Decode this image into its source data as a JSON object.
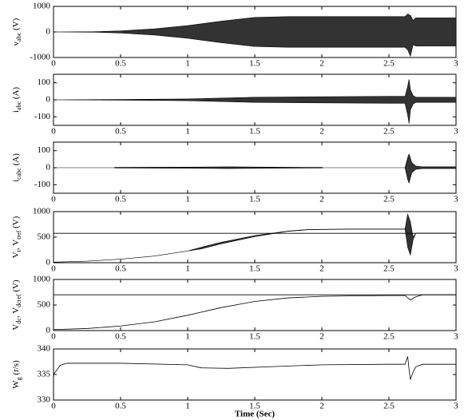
{
  "chart_data": [
    {
      "type": "line",
      "ylabel": [
        {
          "text": "v"
        },
        {
          "text": "abc",
          "sub": true
        },
        {
          "text": " (V)"
        }
      ],
      "xlim": [
        0,
        3
      ],
      "xticks": [
        0,
        0.5,
        1,
        1.5,
        2,
        2.5,
        3
      ],
      "ylim": [
        -1000,
        1000
      ],
      "yticks": [
        -1000,
        0,
        1000
      ],
      "fill_between": [
        0,
        1
      ],
      "series": [
        {
          "color": "#000000",
          "x": [
            0,
            0.3,
            0.5,
            0.75,
            1,
            1.25,
            1.5,
            1.75,
            2,
            2.25,
            2.5,
            2.62,
            2.64,
            2.66,
            2.68,
            2.7,
            2.75,
            3
          ],
          "values": [
            0,
            10,
            40,
            120,
            250,
            420,
            570,
            600,
            600,
            600,
            600,
            600,
            700,
            650,
            450,
            550,
            550,
            550
          ]
        },
        {
          "color": "#000000",
          "x": [
            0,
            0.3,
            0.5,
            0.75,
            1,
            1.25,
            1.5,
            1.75,
            2,
            2.25,
            2.5,
            2.62,
            2.64,
            2.66,
            2.68,
            2.7,
            2.75,
            3
          ],
          "values": [
            0,
            -10,
            -40,
            -120,
            -250,
            -420,
            -570,
            -600,
            -600,
            -600,
            -600,
            -600,
            -700,
            -950,
            -500,
            -550,
            -550,
            -550
          ]
        }
      ]
    },
    {
      "type": "line",
      "ylabel": [
        {
          "text": "i"
        },
        {
          "text": "abc",
          "sub": true
        },
        {
          "text": " (A)"
        }
      ],
      "xlim": [
        0,
        3
      ],
      "xticks": [
        0,
        0.5,
        1,
        1.5,
        2,
        2.5,
        3
      ],
      "ylim": [
        -150,
        150
      ],
      "yticks": [
        -100,
        0,
        100
      ],
      "fill_between": [
        0,
        1
      ],
      "series": [
        {
          "color": "#000000",
          "x": [
            0,
            0.5,
            1,
            1.5,
            2,
            2.5,
            2.62,
            2.64,
            2.65,
            2.66,
            2.68,
            2.7,
            3
          ],
          "values": [
            0,
            2,
            5,
            15,
            18,
            20,
            20,
            80,
            120,
            60,
            25,
            15,
            15
          ]
        },
        {
          "color": "#000000",
          "x": [
            0,
            0.5,
            1,
            1.5,
            2,
            2.5,
            2.62,
            2.64,
            2.65,
            2.66,
            2.68,
            2.7,
            3
          ],
          "values": [
            0,
            -2,
            -5,
            -15,
            -18,
            -20,
            -20,
            -90,
            -140,
            -60,
            -25,
            -15,
            -15
          ]
        }
      ]
    },
    {
      "type": "line",
      "ylabel": [
        {
          "text": "i"
        },
        {
          "text": "cabc",
          "sub": true
        },
        {
          "text": " (A)"
        }
      ],
      "xlim": [
        0,
        3
      ],
      "xticks": [
        0,
        0.5,
        1,
        1.5,
        2,
        2.5,
        3
      ],
      "ylim": [
        -150,
        150
      ],
      "yticks": [
        -100,
        0,
        100
      ],
      "fill_between": [
        0,
        1
      ],
      "series": [
        {
          "color": "#000000",
          "x": [
            0,
            0.45,
            0.46,
            1,
            1.3,
            1.6,
            2,
            2.01,
            2.62,
            2.64,
            2.65,
            2.67,
            2.7,
            2.75,
            3
          ],
          "values": [
            0,
            0,
            2,
            3,
            5,
            3,
            2,
            0,
            0,
            60,
            80,
            30,
            10,
            5,
            5
          ]
        },
        {
          "color": "#000000",
          "x": [
            0,
            0.45,
            0.46,
            1,
            1.3,
            1.6,
            2,
            2.01,
            2.62,
            2.64,
            2.65,
            2.67,
            2.7,
            2.75,
            3
          ],
          "values": [
            0,
            0,
            -2,
            -3,
            -5,
            -3,
            -2,
            0,
            0,
            -70,
            -90,
            -30,
            -10,
            -5,
            -5
          ]
        }
      ]
    },
    {
      "type": "line",
      "ylabel": [
        {
          "text": "V"
        },
        {
          "text": "t",
          "sub": true
        },
        {
          "text": ", V"
        },
        {
          "text": "tref",
          "sub": true
        },
        {
          "text": " (V)"
        }
      ],
      "xlim": [
        0,
        3
      ],
      "xticks": [
        0,
        0.5,
        1,
        1.5,
        2,
        2.5,
        3
      ],
      "ylim": [
        0,
        1000
      ],
      "yticks": [
        0,
        500,
        1000
      ],
      "fill_between": [
        0,
        1
      ],
      "series": [
        {
          "color": "#000000",
          "x": [
            0,
            0.25,
            0.5,
            0.75,
            1,
            1.1,
            1.25,
            1.5,
            1.75,
            1.9,
            2.2,
            2.5,
            2.62,
            2.64,
            2.66,
            2.68,
            2.7,
            3
          ],
          "values": [
            10,
            30,
            70,
            130,
            230,
            300,
            400,
            530,
            620,
            650,
            660,
            660,
            660,
            950,
            800,
            500,
            580,
            580
          ]
        },
        {
          "color": "#000000",
          "x": [
            0,
            0.25,
            0.5,
            0.75,
            1,
            1.1,
            1.25,
            1.5,
            1.75,
            1.9,
            2.2,
            2.5,
            2.62,
            2.64,
            2.66,
            2.68,
            2.7,
            3
          ],
          "values": [
            10,
            30,
            70,
            130,
            230,
            270,
            370,
            510,
            615,
            645,
            655,
            655,
            655,
            300,
            150,
            450,
            580,
            580
          ]
        },
        {
          "color": "#000000",
          "x": [
            0,
            3
          ],
          "values": [
            575,
            575
          ]
        }
      ]
    },
    {
      "type": "line",
      "ylabel": [
        {
          "text": "V"
        },
        {
          "text": "dc",
          "sub": true
        },
        {
          "text": ", V"
        },
        {
          "text": "dcref",
          "sub": true
        },
        {
          "text": " (V)"
        }
      ],
      "xlim": [
        0,
        3
      ],
      "xticks": [
        0,
        0.5,
        1,
        1.5,
        2,
        2.5,
        3
      ],
      "ylim": [
        0,
        1000
      ],
      "yticks": [
        0,
        500,
        1000
      ],
      "series": [
        {
          "color": "#000000",
          "x": [
            0,
            0.25,
            0.5,
            0.75,
            1,
            1.25,
            1.5,
            1.75,
            2,
            2.25,
            2.5,
            2.62,
            2.66,
            2.7,
            2.75,
            3
          ],
          "values": [
            20,
            40,
            90,
            170,
            300,
            450,
            570,
            640,
            670,
            680,
            685,
            685,
            600,
            660,
            700,
            700
          ]
        },
        {
          "color": "#000000",
          "x": [
            0,
            3
          ],
          "values": [
            700,
            700
          ]
        }
      ]
    },
    {
      "type": "line",
      "ylabel": [
        {
          "text": "W"
        },
        {
          "text": "g",
          "sub": true
        },
        {
          "text": " (r/s)"
        }
      ],
      "xlabel": "Time (Sec)",
      "xlim": [
        0,
        3
      ],
      "xticks": [
        0,
        0.5,
        1,
        1.5,
        2,
        2.5,
        3
      ],
      "ylim": [
        330,
        340
      ],
      "yticks": [
        330,
        335,
        340
      ],
      "series": [
        {
          "color": "#000000",
          "x": [
            0,
            0.05,
            0.1,
            0.5,
            1,
            1.1,
            1.3,
            1.6,
            2,
            2.5,
            2.62,
            2.64,
            2.65,
            2.66,
            2.68,
            2.7,
            2.75,
            3
          ],
          "values": [
            335,
            336.8,
            337.2,
            337.2,
            336.9,
            336.3,
            336.2,
            336.5,
            336.9,
            337,
            337,
            338.5,
            336,
            334,
            335.5,
            336.5,
            337,
            337
          ]
        }
      ]
    }
  ]
}
